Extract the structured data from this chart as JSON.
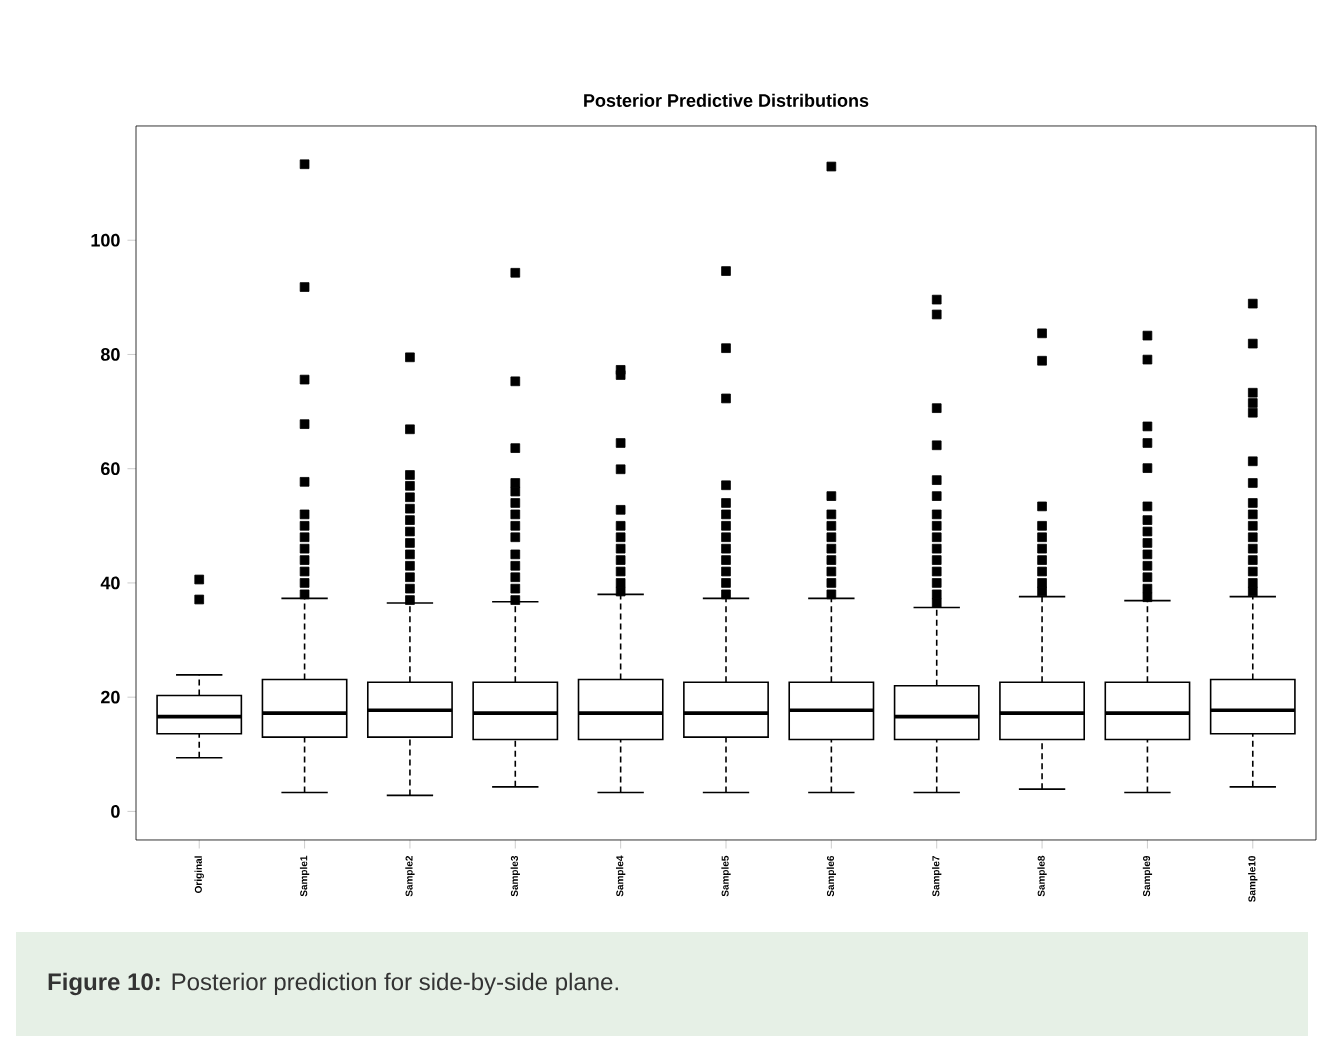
{
  "chart_data": {
    "type": "box",
    "title": "Posterior Predictive Distributions",
    "categories": [
      "Original",
      "Sample1",
      "Sample2",
      "Sample3",
      "Sample4",
      "Sample5",
      "Sample6",
      "Sample7",
      "Sample8",
      "Sample9",
      "Sample10"
    ],
    "color": "#000000",
    "marker": "square",
    "ylim": [
      -5,
      120
    ],
    "yticks": [
      0,
      20,
      40,
      60,
      80,
      100
    ],
    "boxes": [
      {
        "low": 9.4,
        "q1": 13.6,
        "median": 16.6,
        "q3": 20.3,
        "high": 23.9,
        "outliers": [
          37.1,
          40.6
        ]
      },
      {
        "low": 3.3,
        "q1": 13.0,
        "median": 17.2,
        "q3": 23.1,
        "high": 37.3,
        "outliers": [
          38,
          40,
          42,
          44,
          46,
          48,
          50,
          52,
          57.7,
          67.8,
          75.6,
          91.8,
          113.3
        ]
      },
      {
        "low": 2.8,
        "q1": 13.0,
        "median": 17.7,
        "q3": 22.6,
        "high": 36.5,
        "outliers": [
          37,
          39,
          41,
          43,
          45,
          47,
          49,
          51,
          53,
          55,
          57,
          58.9,
          66.9,
          79.5
        ]
      },
      {
        "low": 4.3,
        "q1": 12.6,
        "median": 17.2,
        "q3": 22.6,
        "high": 36.7,
        "outliers": [
          37,
          39,
          41,
          43,
          45,
          48,
          50,
          52,
          54,
          56,
          57.5,
          63.6,
          75.3,
          94.3
        ]
      },
      {
        "low": 3.3,
        "q1": 12.6,
        "median": 17.2,
        "q3": 23.1,
        "high": 38.0,
        "outliers": [
          38.5,
          40,
          42,
          44,
          46,
          48,
          50,
          52.8,
          59.9,
          64.5,
          76.4,
          77.3
        ]
      },
      {
        "low": 3.3,
        "q1": 13.0,
        "median": 17.2,
        "q3": 22.6,
        "high": 37.3,
        "outliers": [
          38,
          40,
          42,
          44,
          46,
          48,
          50,
          52,
          54,
          57.1,
          72.3,
          81.1,
          94.6
        ]
      },
      {
        "low": 3.3,
        "q1": 12.6,
        "median": 17.7,
        "q3": 22.6,
        "high": 37.3,
        "outliers": [
          38,
          40,
          42,
          44,
          46,
          48,
          50,
          52,
          55.2,
          112.9
        ]
      },
      {
        "low": 3.3,
        "q1": 12.6,
        "median": 16.6,
        "q3": 22.0,
        "high": 35.7,
        "outliers": [
          36.5,
          38,
          40,
          42,
          44,
          46,
          48,
          50,
          52,
          55.2,
          58.0,
          64.1,
          70.6,
          87.0,
          89.6
        ]
      },
      {
        "low": 3.9,
        "q1": 12.6,
        "median": 17.2,
        "q3": 22.6,
        "high": 37.6,
        "outliers": [
          38.5,
          40,
          42,
          44,
          46,
          48,
          50,
          53.4,
          78.9,
          83.7
        ]
      },
      {
        "low": 3.3,
        "q1": 12.6,
        "median": 17.2,
        "q3": 22.6,
        "high": 36.9,
        "outliers": [
          37.5,
          39,
          41,
          43,
          45,
          47,
          49,
          51,
          53.4,
          60.1,
          64.5,
          67.4,
          79.1,
          83.3
        ]
      },
      {
        "low": 4.3,
        "q1": 13.6,
        "median": 17.7,
        "q3": 23.1,
        "high": 37.6,
        "outliers": [
          38.5,
          40,
          42,
          44,
          46,
          48,
          50,
          52,
          54,
          57.5,
          61.3,
          69.8,
          71.5,
          73.3,
          81.9,
          88.9
        ]
      }
    ],
    "annotations": [
      "**Figure 10:** Posterior prediction for side-by-side plane."
    ]
  }
}
